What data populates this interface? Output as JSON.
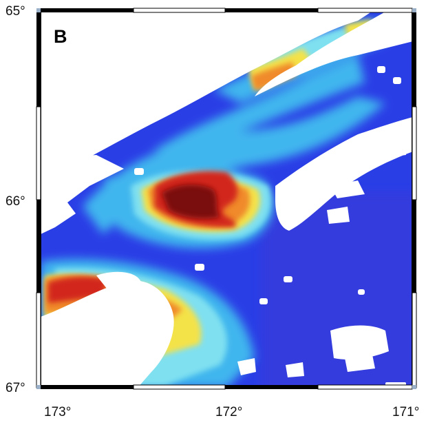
{
  "panel_label": "B",
  "latitude_labels": [
    "65°",
    "66°",
    "67°"
  ],
  "longitude_labels": [
    "173°",
    "172°",
    "171°"
  ],
  "colors": {
    "ocean_base": "#2a3ee6",
    "ocean_deep": "#3b3ad8",
    "cyan": "#3fb6ee",
    "light_cyan": "#7fe0f0",
    "yellow": "#f4e24a",
    "orange": "#f08a2a",
    "red": "#d2281e",
    "dark_red": "#7a0c10",
    "cloud_mask": "#ffffff",
    "frame": "#000000"
  }
}
